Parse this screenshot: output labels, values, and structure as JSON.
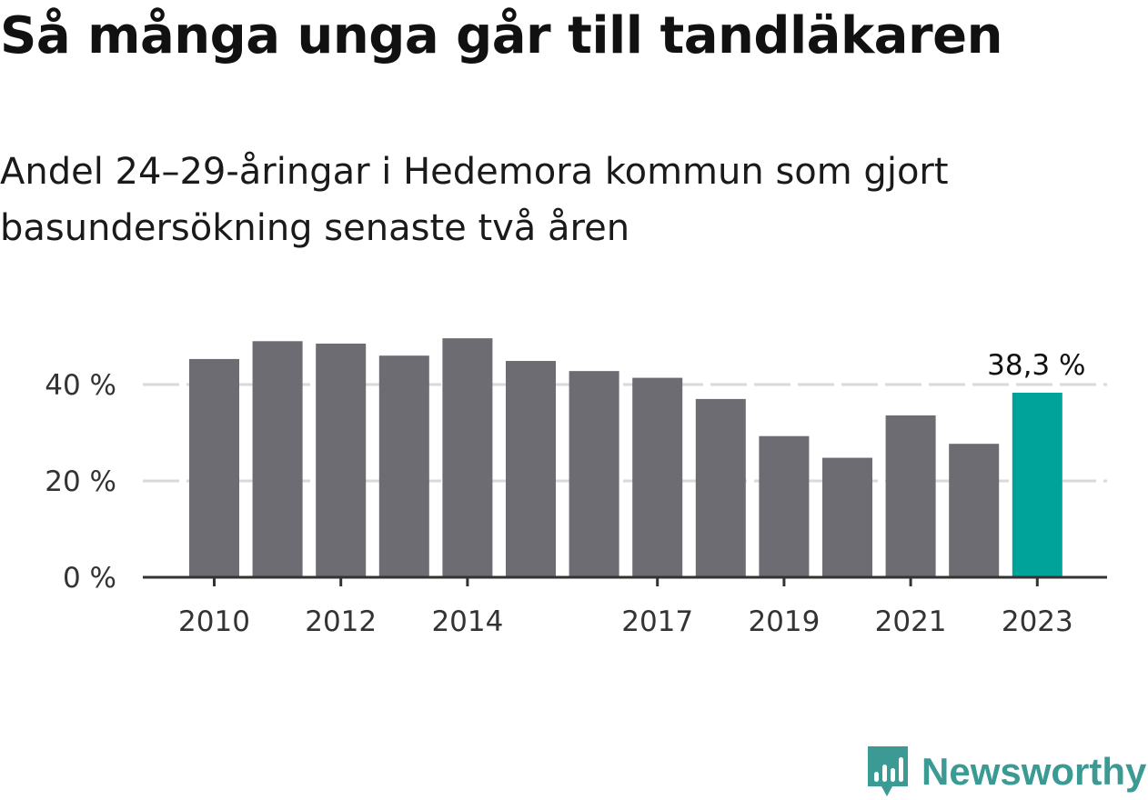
{
  "header": {
    "title": "Så många unga går till tandläkaren",
    "subtitle": "Andel 24–29-åringar i Hedemora kommun som gjort basundersökning senaste två åren"
  },
  "brand": {
    "name": "Newsworthy",
    "icon": "newsworthy-logo-icon",
    "color": "#3b9a94"
  },
  "chart_data": {
    "type": "bar",
    "categories": [
      "2010",
      "2011",
      "2012",
      "2013",
      "2014",
      "2015",
      "2016",
      "2017",
      "2018",
      "2019",
      "2020",
      "2021",
      "2022",
      "2023"
    ],
    "values": [
      45.3,
      49.0,
      48.5,
      46.0,
      49.6,
      44.9,
      42.8,
      41.4,
      37.0,
      29.3,
      24.8,
      33.6,
      27.7,
      38.3
    ],
    "x_tick_labels": [
      "2010",
      "2012",
      "2014",
      "2017",
      "2019",
      "2021",
      "2023"
    ],
    "y_ticks": [
      0,
      20,
      40
    ],
    "y_tick_labels": [
      "0 %",
      "20 %",
      "40 %"
    ],
    "ylim": [
      0,
      50
    ],
    "highlight": {
      "category": "2023",
      "label": "38,3 %",
      "color": "#00a39a"
    },
    "bar_color": "#6d6c72",
    "grid": true
  }
}
